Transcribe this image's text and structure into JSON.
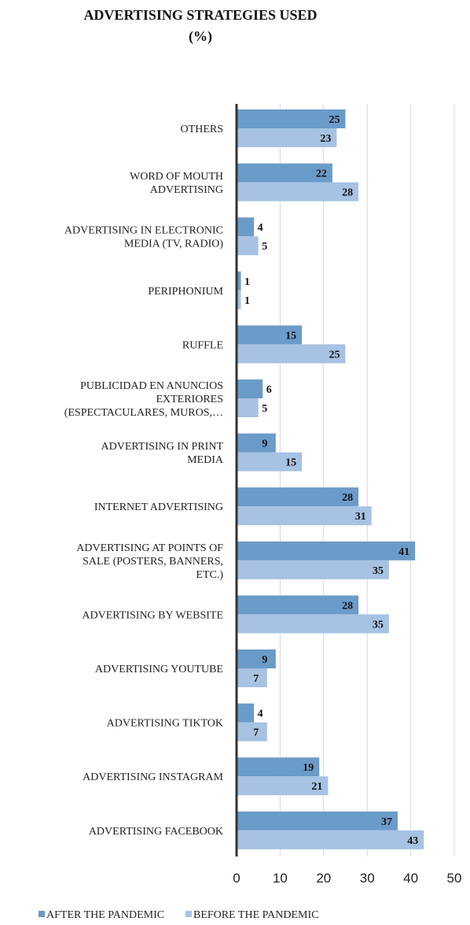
{
  "chart_data": {
    "type": "bar",
    "orientation": "horizontal",
    "title_line1": "ADVERTISING STRATEGIES USED",
    "title_line2": "(%)",
    "categories": [
      [
        "OTHERS"
      ],
      [
        "WORD OF MOUTH",
        "ADVERTISING"
      ],
      [
        "ADVERTISING IN ELECTRONIC",
        "MEDIA (TV, RADIO)"
      ],
      [
        "PERIPHONIUM"
      ],
      [
        "RUFFLE"
      ],
      [
        "PUBLICIDAD EN ANUNCIOS",
        "EXTERIORES",
        "(ESPECTACULARES, MUROS,…"
      ],
      [
        "ADVERTISING IN PRINT",
        "MEDIA"
      ],
      [
        "INTERNET ADVERTISING"
      ],
      [
        "ADVERTISING AT POINTS OF",
        "SALE (POSTERS, BANNERS,",
        "ETC.)"
      ],
      [
        "ADVERTISING BY WEBSITE"
      ],
      [
        "ADVERTISING YOUTUBE"
      ],
      [
        "ADVERTISING TIKTOK"
      ],
      [
        "ADVERTISING INSTAGRAM"
      ],
      [
        "ADVERTISING FACEBOOK"
      ]
    ],
    "series": [
      {
        "name": "AFTER THE PANDEMIC",
        "color": "#6b9bc9",
        "values": [
          25,
          22,
          4,
          1,
          15,
          6,
          9,
          28,
          41,
          28,
          9,
          4,
          19,
          37
        ]
      },
      {
        "name": "BEFORE THE PANDEMIC",
        "color": "#a7c2e3",
        "values": [
          23,
          28,
          5,
          1,
          25,
          5,
          15,
          31,
          35,
          35,
          7,
          7,
          21,
          43
        ]
      }
    ],
    "xlim": [
      0,
      50
    ],
    "xticks": [
      0,
      10,
      20,
      30,
      40,
      50
    ],
    "grid": true,
    "legend_position": "bottom"
  }
}
